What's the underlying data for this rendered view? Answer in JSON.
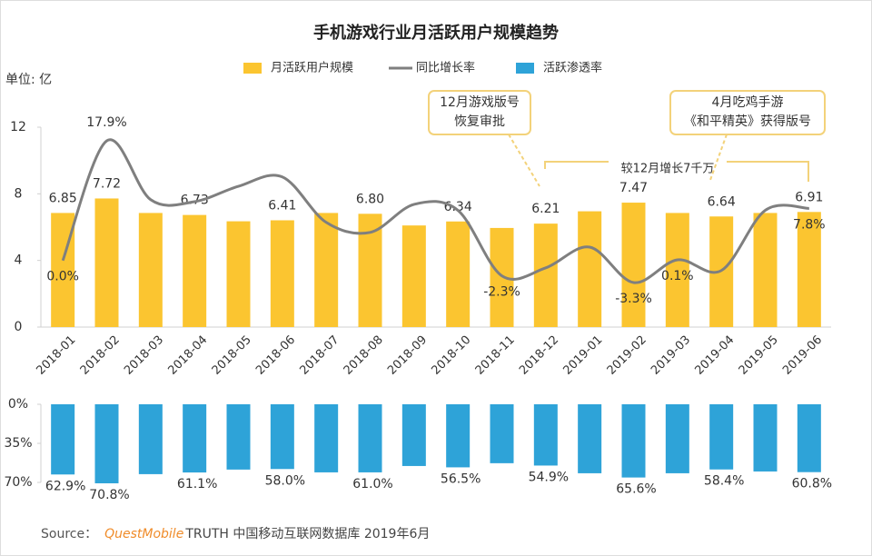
{
  "chart_data": [
    {
      "type": "bar",
      "title": "手机游戏行业月活跃用户规模趋势",
      "unit_label": "单位: 亿",
      "categories": [
        "2018-01",
        "2018-02",
        "2018-03",
        "2018-04",
        "2018-05",
        "2018-06",
        "2018-07",
        "2018-08",
        "2018-09",
        "2018-10",
        "2018-11",
        "2018-12",
        "2019-01",
        "2019-02",
        "2019-03",
        "2019-04",
        "2019-05",
        "2019-06"
      ],
      "series": [
        {
          "name": "月活跃用户规模",
          "color": "#fbc530",
          "values": [
            6.85,
            7.72,
            6.85,
            6.73,
            6.35,
            6.41,
            6.85,
            6.8,
            6.1,
            6.34,
            5.95,
            6.21,
            6.95,
            7.47,
            6.85,
            6.64,
            6.85,
            6.91
          ],
          "value_labels": [
            "6.85",
            "7.72",
            null,
            "6.73",
            null,
            "6.41",
            null,
            "6.80",
            null,
            "6.34",
            null,
            "6.21",
            null,
            "7.47",
            null,
            "6.64",
            null,
            "6.91"
          ]
        },
        {
          "name": "同比增长率",
          "type": "line",
          "color": "#7f7f7f",
          "values": [
            0.0,
            17.9,
            9.1,
            8.8,
            11.1,
            12.5,
            5.7,
            4.2,
            8.4,
            7.5,
            -2.3,
            -1.1,
            2.0,
            -3.3,
            0.1,
            -1.5,
            7.5,
            7.8
          ],
          "value_labels": [
            "0.0%",
            "17.9%",
            null,
            null,
            null,
            null,
            null,
            null,
            null,
            null,
            "-2.3%",
            null,
            null,
            "-3.3%",
            "0.1%",
            null,
            null,
            "7.8%"
          ]
        }
      ],
      "ylim": [
        0,
        12
      ],
      "yticks": [
        0,
        4,
        8,
        12
      ],
      "annotations": [
        {
          "lines": [
            "12月游戏版号",
            "恢复审批"
          ]
        },
        {
          "lines": [
            "4月吃鸡手游",
            "《和平精英》获得版号"
          ]
        }
      ],
      "bracket_label": "较12月增长7千万"
    },
    {
      "type": "bar",
      "orientation": "down",
      "series": [
        {
          "name": "活跃渗透率",
          "color": "#2ea3d8",
          "values": [
            62.9,
            70.8,
            62.6,
            61.1,
            58.5,
            58.0,
            61.0,
            61.0,
            55.3,
            56.5,
            52.8,
            54.9,
            61.8,
            65.6,
            61.8,
            58.4,
            60.2,
            60.8
          ],
          "value_labels": [
            "62.9%",
            "70.8%",
            null,
            "61.1%",
            null,
            "58.0%",
            null,
            "61.0%",
            null,
            "56.5%",
            null,
            "54.9%",
            null,
            "65.6%",
            null,
            "58.4%",
            null,
            "60.8%"
          ]
        }
      ],
      "ylim": [
        0,
        70
      ],
      "yticks": [
        {
          "value": 0,
          "label": "0%"
        },
        {
          "value": 35,
          "label": "35%"
        },
        {
          "value": 70,
          "label": "70%"
        }
      ]
    }
  ],
  "source": {
    "prefix": "Source：",
    "brand": "QuestMobile",
    "text": "TRUTH 中国移动互联网数据库 2019年6月"
  }
}
